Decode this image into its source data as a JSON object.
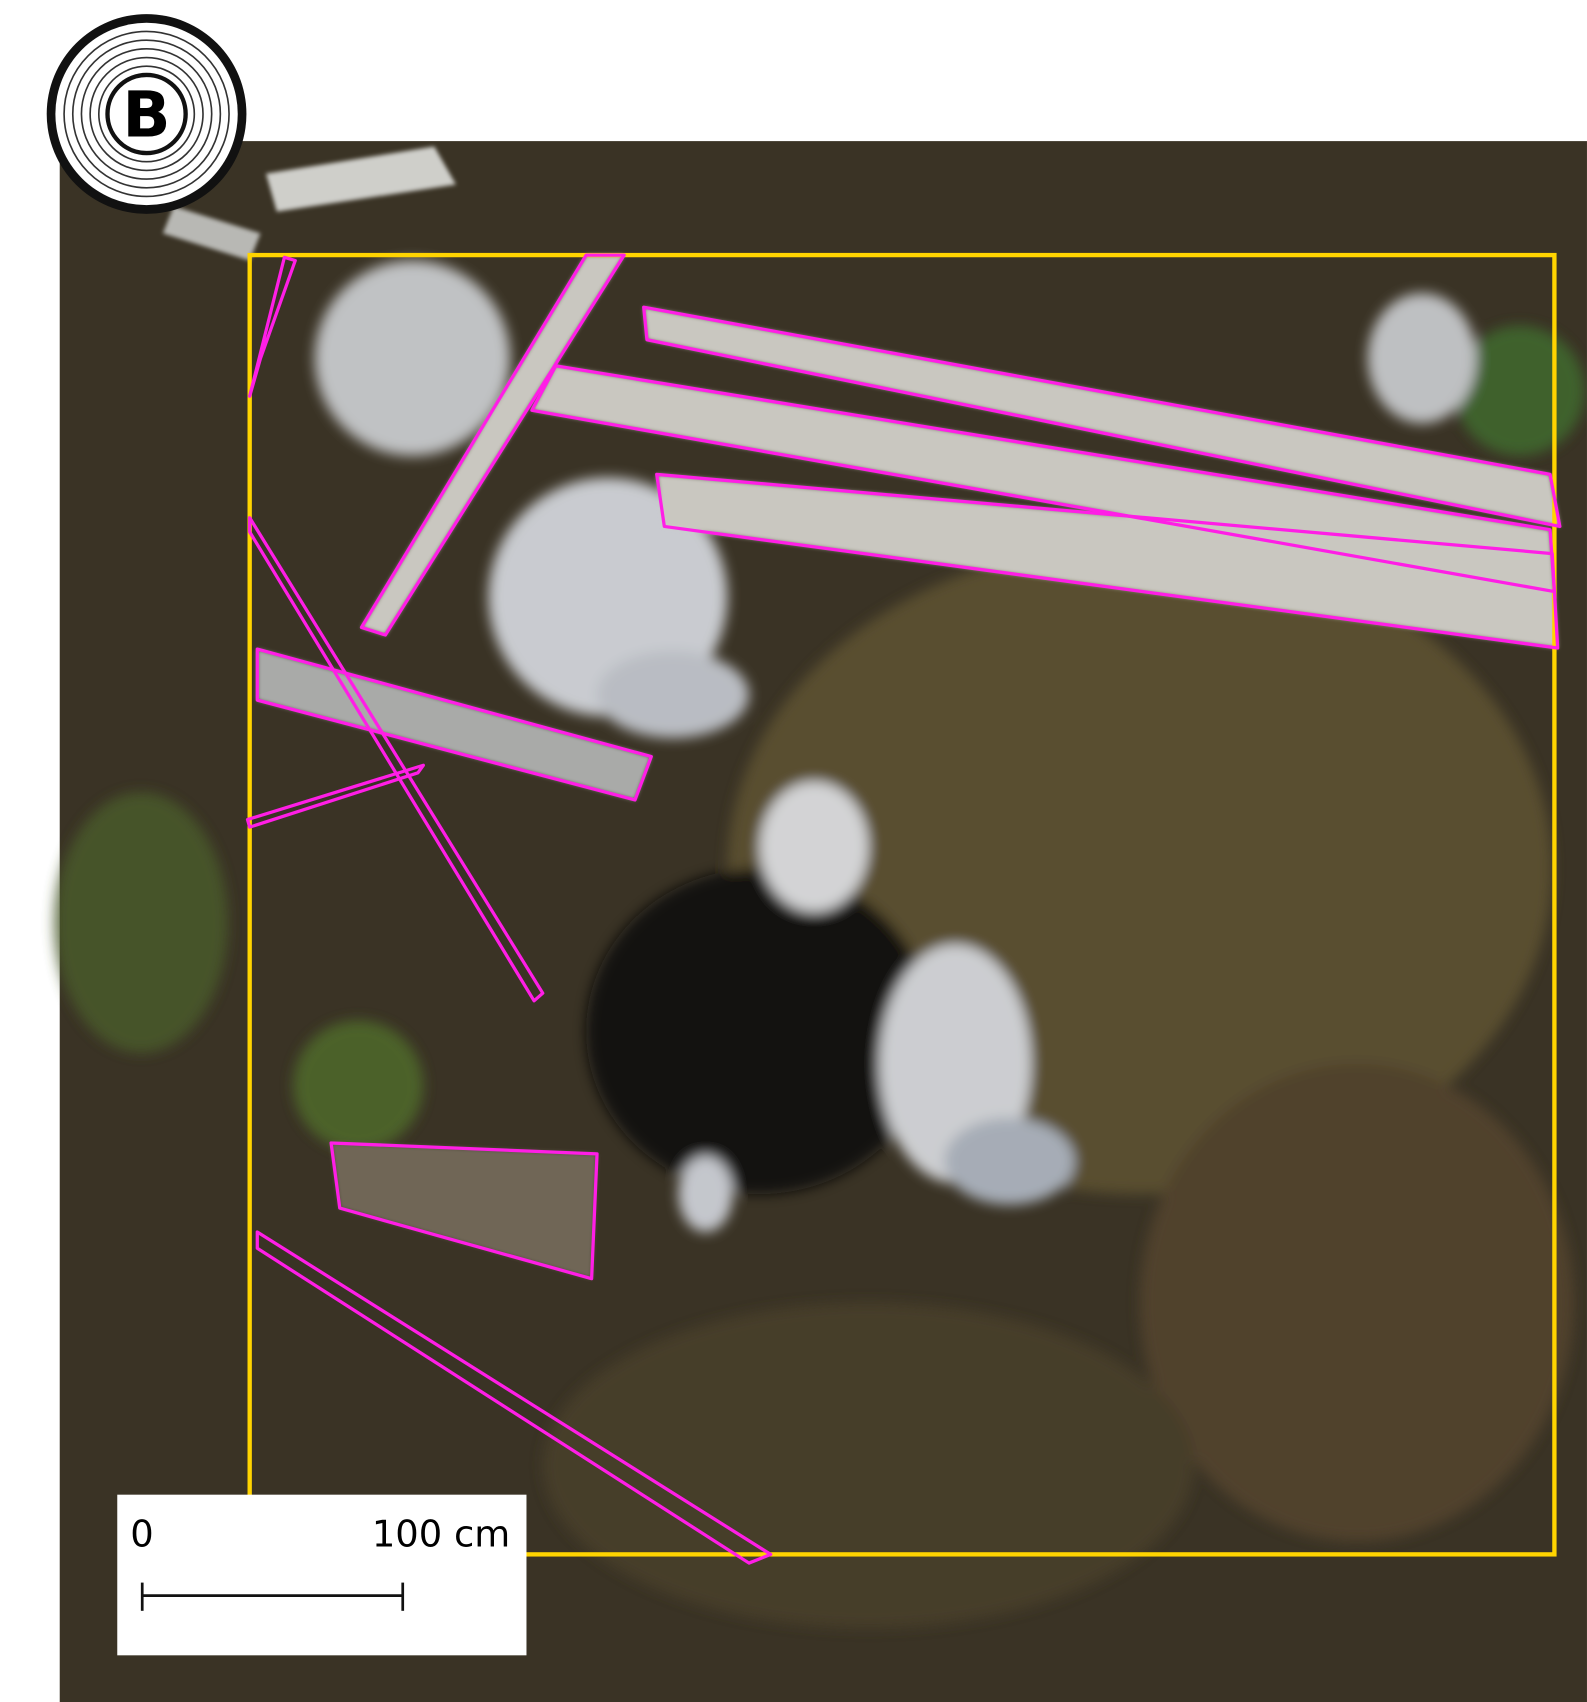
{
  "badge": {
    "label": "B"
  },
  "scale_bar": {
    "start_label": "0",
    "end_label": "100 cm"
  }
}
